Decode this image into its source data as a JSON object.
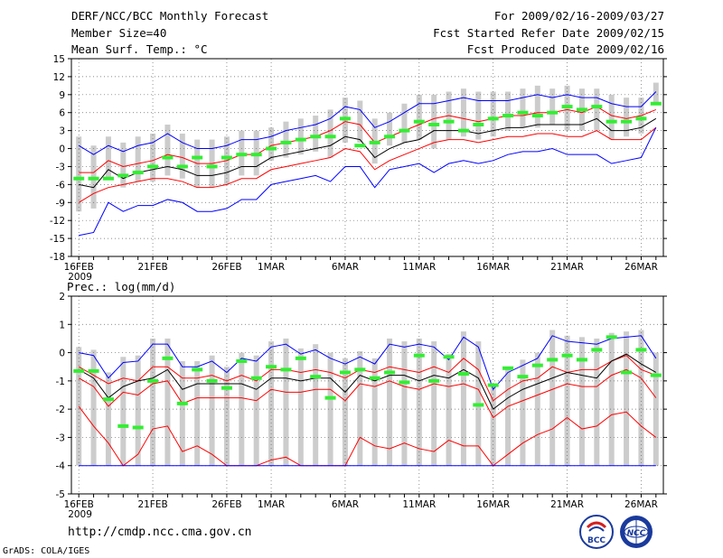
{
  "header": {
    "title": "DERF/NCC/BCC Monthly Forecast",
    "member_size": "Member Size=40",
    "variable": "Mean Surf. Temp.: °C",
    "period": "For 2009/02/16-2009/03/27",
    "start_ref": "Fcst Started Refer Date 2009/02/15",
    "produced": "Fcst Produced Date 2009/02/16"
  },
  "footer": {
    "url": "http://cmdp.ncc.cma.gov.cn",
    "grads": "GrADS: COLA/IGES",
    "logo_bcc": "BCC",
    "logo_ncc": "NCC"
  },
  "colors": {
    "max": "#0000ff",
    "min": "#ff0000",
    "mean": "#000000",
    "p_high": "#ff0000",
    "obs": "#33ee33",
    "box": "#cccccc",
    "grid": "#666666"
  },
  "chart_data": [
    {
      "type": "line",
      "title": "Mean Surf. Temp.: °C",
      "ylim": [
        -18,
        15
      ],
      "yticks": [
        -18,
        -15,
        -12,
        -9,
        -6,
        -3,
        0,
        3,
        6,
        9,
        12,
        15
      ],
      "x_labels": [
        "16FEB",
        "21FEB",
        "26FEB",
        "1MAR",
        "6MAR",
        "11MAR",
        "16MAR",
        "21MAR",
        "26MAR"
      ],
      "x_label_index": [
        0,
        5,
        10,
        13,
        18,
        23,
        28,
        33,
        38
      ],
      "year_label": "2009",
      "days": 40,
      "series": [
        {
          "name": "max",
          "values": [
            0.5,
            -1,
            0.5,
            -0.5,
            0.5,
            1,
            2.5,
            1,
            0,
            0,
            0.5,
            1.5,
            1.5,
            2,
            3,
            3.5,
            4,
            5,
            7,
            6.5,
            3.5,
            4.5,
            6,
            7.5,
            7.5,
            8,
            8.5,
            8,
            8,
            8,
            8.5,
            9,
            8.5,
            9,
            8.5,
            8.5,
            7.5,
            7,
            7,
            9.5
          ]
        },
        {
          "name": "p_high",
          "values": [
            -4,
            -4,
            -2,
            -3,
            -2.5,
            -2,
            -1,
            -1.5,
            -2.5,
            -2.5,
            -2,
            -1,
            -1,
            0.5,
            1,
            1.5,
            2,
            3,
            4.5,
            4,
            1,
            2,
            3,
            4,
            5,
            5.5,
            5,
            4.5,
            5,
            5.5,
            5.5,
            6,
            6,
            6.5,
            6,
            7,
            5.5,
            5,
            5.5,
            6.5
          ]
        },
        {
          "name": "mean",
          "values": [
            -6,
            -6.5,
            -3.5,
            -5,
            -4,
            -3.5,
            -3,
            -3.5,
            -4.5,
            -4.5,
            -4,
            -3,
            -3,
            -1.5,
            -1,
            -0.5,
            0,
            0.5,
            2,
            1.5,
            -1.5,
            0,
            1,
            1.5,
            3,
            3,
            3,
            2.5,
            3,
            3.5,
            3.5,
            4,
            4,
            4,
            4,
            5,
            3,
            3,
            3.5,
            5
          ]
        },
        {
          "name": "p_low",
          "values": [
            -9,
            -7.5,
            -6.5,
            -6,
            -5.5,
            -5,
            -5,
            -5.5,
            -6.5,
            -6.5,
            -6,
            -5,
            -5,
            -3.5,
            -3,
            -2.5,
            -2,
            -1.5,
            0,
            -0.5,
            -3.5,
            -2,
            -1,
            0,
            1,
            1.5,
            1.5,
            1,
            1.5,
            2,
            2,
            2.5,
            2.5,
            2,
            2,
            3,
            1.5,
            1.5,
            1.5,
            3.5
          ]
        },
        {
          "name": "min",
          "values": [
            -14.5,
            -14,
            -9,
            -10.5,
            -9.5,
            -9.5,
            -8.5,
            -9,
            -10.5,
            -10.5,
            -10,
            -8.5,
            -8.5,
            -6,
            -5.5,
            -5,
            -4.5,
            -5.5,
            -3,
            -3,
            -6.5,
            -3.5,
            -3,
            -2.5,
            -4,
            -2.5,
            -2,
            -2.5,
            -2,
            -1,
            -0.5,
            -0.5,
            0,
            -1,
            -1,
            -1,
            -2.5,
            -2,
            -1.5,
            3.5
          ]
        },
        {
          "name": "obs",
          "values": [
            -5,
            -5,
            -5,
            -4.5,
            -4,
            -3,
            -1.5,
            -3,
            -1.5,
            -3,
            -1.5,
            -1,
            -1,
            0,
            1,
            1.5,
            2,
            2,
            5,
            0.5,
            1,
            2,
            3,
            4.5,
            4,
            4.5,
            3,
            4,
            5,
            5.5,
            6,
            5.5,
            6,
            7,
            6.5,
            7,
            4.5,
            4.5,
            5,
            7.5
          ]
        }
      ]
    },
    {
      "type": "line",
      "title": "Prec.: log(mm/d)",
      "ylim": [
        -5,
        2
      ],
      "yticks": [
        -5,
        -4,
        -3,
        -2,
        -1,
        0,
        1,
        2
      ],
      "x_labels": [
        "16FEB",
        "21FEB",
        "26FEB",
        "1MAR",
        "6MAR",
        "11MAR",
        "16MAR",
        "21MAR",
        "26MAR"
      ],
      "x_label_index": [
        0,
        5,
        10,
        13,
        18,
        23,
        28,
        33,
        38
      ],
      "year_label": "2009",
      "days": 40,
      "series": [
        {
          "name": "max",
          "values": [
            0,
            -0.1,
            -0.9,
            -0.35,
            -0.3,
            0.3,
            0.3,
            -0.5,
            -0.5,
            -0.3,
            -0.7,
            -0.2,
            -0.3,
            0.2,
            0.3,
            -0.05,
            0.1,
            -0.2,
            -0.4,
            -0.15,
            -0.4,
            0.3,
            0.2,
            0.3,
            0.2,
            -0.25,
            0.55,
            0.2,
            -1.3,
            -0.7,
            -0.45,
            -0.2,
            0.6,
            0.4,
            0.35,
            0.3,
            0.5,
            0.55,
            0.6,
            -0.2
          ]
        },
        {
          "name": "p_high",
          "values": [
            -0.5,
            -0.8,
            -1.1,
            -0.9,
            -1,
            -0.5,
            -0.5,
            -0.9,
            -0.9,
            -0.8,
            -1,
            -0.8,
            -1,
            -0.6,
            -0.6,
            -0.7,
            -0.6,
            -0.7,
            -0.9,
            -0.6,
            -0.7,
            -0.5,
            -0.6,
            -0.7,
            -0.5,
            -0.7,
            -0.2,
            -0.6,
            -1.7,
            -1.3,
            -1,
            -0.9,
            -0.5,
            -0.7,
            -0.6,
            -0.6,
            -0.3,
            -0.1,
            -0.6,
            -0.8
          ]
        },
        {
          "name": "mean",
          "values": [
            -0.6,
            -0.9,
            -1.6,
            -1.2,
            -1,
            -0.9,
            -0.6,
            -1.3,
            -1.1,
            -1.1,
            -1.1,
            -1.1,
            -1.3,
            -0.9,
            -0.9,
            -1,
            -0.9,
            -0.9,
            -1.4,
            -0.8,
            -1,
            -0.8,
            -0.8,
            -1,
            -0.8,
            -0.9,
            -0.6,
            -0.9,
            -2,
            -1.6,
            -1.3,
            -1.1,
            -0.9,
            -0.7,
            -0.8,
            -0.9,
            -0.3,
            -0.05,
            -0.4,
            -0.7
          ]
        },
        {
          "name": "p_low",
          "values": [
            -0.9,
            -1.2,
            -1.9,
            -1.4,
            -1.5,
            -1.1,
            -1,
            -1.8,
            -1.6,
            -1.6,
            -1.6,
            -1.6,
            -1.7,
            -1.3,
            -1.4,
            -1.4,
            -1.3,
            -1.3,
            -1.7,
            -1.1,
            -1.2,
            -1,
            -1.2,
            -1.3,
            -1.1,
            -1.2,
            -1.1,
            -1.3,
            -2.3,
            -1.9,
            -1.7,
            -1.5,
            -1.3,
            -1.1,
            -1.2,
            -1.2,
            -0.8,
            -0.6,
            -0.9,
            -1.6
          ]
        },
        {
          "name": "p_low2",
          "values": [
            -1.9,
            -2.6,
            -3.2,
            -4,
            -3.6,
            -2.7,
            -2.6,
            -3.5,
            -3.3,
            -3.6,
            -4,
            -4,
            -4,
            -3.8,
            -3.7,
            -4,
            -4,
            -4,
            -4,
            -3,
            -3.3,
            -3.4,
            -3.2,
            -3.4,
            -3.5,
            -3.1,
            -3.3,
            -3.3,
            -4,
            -3.6,
            -3.2,
            -2.9,
            -2.7,
            -2.3,
            -2.7,
            -2.6,
            -2.2,
            -2.1,
            -2.6,
            -3
          ]
        },
        {
          "name": "obs",
          "values": [
            -0.65,
            -0.65,
            -1.65,
            -2.6,
            -2.65,
            -1,
            -0.2,
            -1.8,
            -0.6,
            -1,
            -1.25,
            -0.3,
            -0.9,
            -0.5,
            -0.6,
            -0.2,
            -0.85,
            -1.6,
            -0.7,
            -0.6,
            -0.9,
            -0.7,
            -1.05,
            -0.1,
            -1,
            -0.15,
            -0.75,
            -1.85,
            -1.15,
            -0.55,
            -0.85,
            -0.45,
            -0.25,
            -0.1,
            -0.25,
            0.1,
            0.55,
            -0.7,
            0.1,
            -0.8
          ]
        }
      ]
    }
  ]
}
